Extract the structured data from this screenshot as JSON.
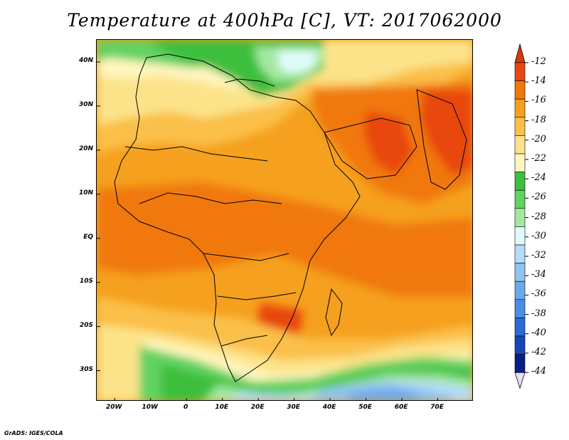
{
  "title": "Temperature at 400hPa [C], VT: 2017062000",
  "credit": "GrADS: IGES/COLA",
  "map": {
    "lon_range": [
      -25,
      80
    ],
    "lat_range": [
      -37,
      45
    ],
    "y_ticks": [
      {
        "lat": 40,
        "label": "40N"
      },
      {
        "lat": 30,
        "label": "30N"
      },
      {
        "lat": 20,
        "label": "20N"
      },
      {
        "lat": 10,
        "label": "10N"
      },
      {
        "lat": 0,
        "label": "EQ"
      },
      {
        "lat": -10,
        "label": "10S"
      },
      {
        "lat": -20,
        "label": "20S"
      },
      {
        "lat": -30,
        "label": "30S"
      }
    ],
    "x_ticks": [
      {
        "lon": -20,
        "label": "20W"
      },
      {
        "lon": -10,
        "label": "10W"
      },
      {
        "lon": 0,
        "label": "0"
      },
      {
        "lon": 10,
        "label": "10E"
      },
      {
        "lon": 20,
        "label": "20E"
      },
      {
        "lon": 30,
        "label": "30E"
      },
      {
        "lon": 40,
        "label": "40E"
      },
      {
        "lon": 50,
        "label": "50E"
      },
      {
        "lon": 60,
        "label": "60E"
      },
      {
        "lon": 70,
        "label": "70E"
      }
    ]
  },
  "colorbar": {
    "labels": [
      "-12",
      "-14",
      "-16",
      "-18",
      "-20",
      "-22",
      "-24",
      "-26",
      "-28",
      "-30",
      "-32",
      "-34",
      "-36",
      "-38",
      "-40",
      "-42",
      "-44"
    ],
    "colors_top_to_bottom": [
      "#e8470f",
      "#f07808",
      "#f5a01e",
      "#fac04a",
      "#fce38a",
      "#fff6be",
      "#3cbf3c",
      "#62d262",
      "#a4e8a0",
      "#e0fcfa",
      "#b4dcf8",
      "#8fc3f0",
      "#6aa8ea",
      "#4a8ee6",
      "#2c6ad8",
      "#1646b8",
      "#0a1e8a"
    ],
    "top_arrow_color": "#d63a0e",
    "bottom_arrow_color": "#e8ddf8"
  }
}
